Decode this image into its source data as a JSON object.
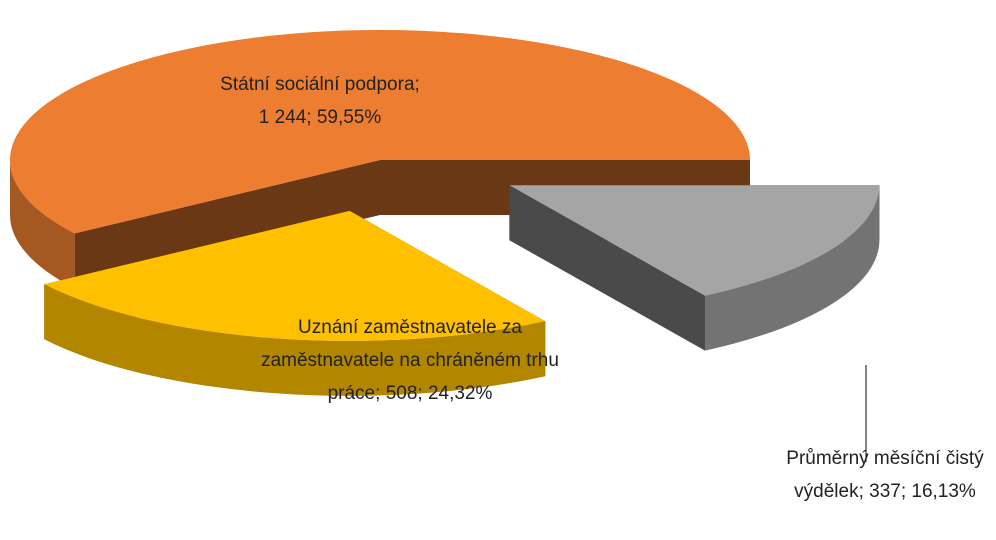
{
  "chart_data": {
    "type": "pie3d",
    "categories": [
      "Státní sociální podpora",
      "Uznání zaměstnavatele za zaměstnavatele na chráněném trhu práce",
      "Průměrný měsíční čistý výdělek"
    ],
    "values": [
      1244,
      508,
      337
    ],
    "value_labels": [
      "1 244",
      "508",
      "337"
    ],
    "percents": [
      59.55,
      24.32,
      16.13
    ],
    "percent_labels": [
      "59,55%",
      "24,32%",
      "16,13%"
    ],
    "label_separator": "; ",
    "colors": [
      "#ed7d31",
      "#ffc000",
      "#a5a5a5"
    ]
  }
}
